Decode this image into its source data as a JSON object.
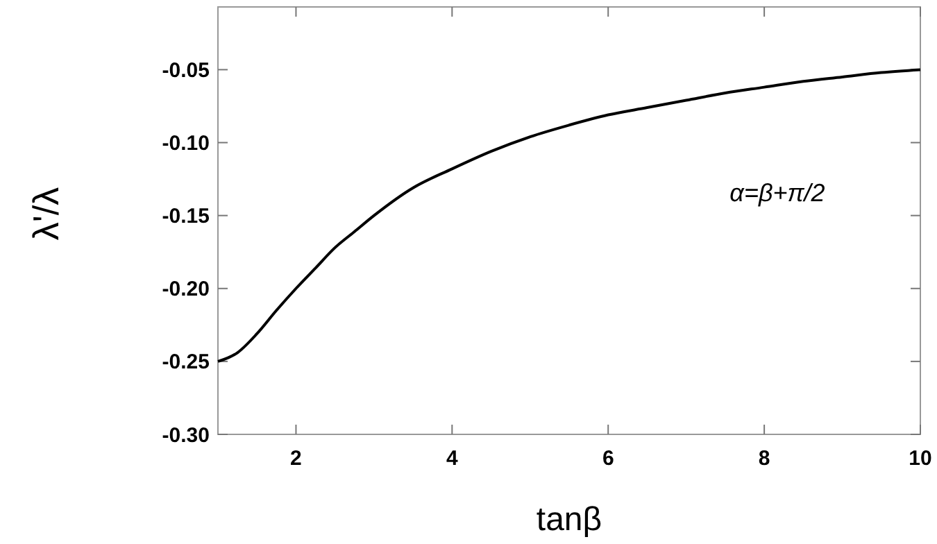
{
  "chart_data": {
    "type": "line",
    "xlabel": "tanβ",
    "ylabel": "λ'/λ",
    "x": [
      1,
      1.25,
      1.5,
      1.75,
      2,
      2.25,
      2.5,
      2.75,
      3,
      3.5,
      4,
      4.5,
      5,
      5.5,
      6,
      6.5,
      7,
      7.5,
      8,
      8.5,
      9,
      9.5,
      10
    ],
    "series": [
      {
        "color": "#000000",
        "values": [
          -0.25,
          -0.244,
          -0.231,
          -0.215,
          -0.2,
          -0.186,
          -0.172,
          -0.161,
          -0.15,
          -0.131,
          -0.118,
          -0.106,
          -0.096,
          -0.088,
          -0.081,
          -0.076,
          -0.071,
          -0.066,
          -0.062,
          -0.058,
          -0.055,
          -0.052,
          -0.05
        ]
      }
    ],
    "xlim": [
      1,
      10
    ],
    "ylim": [
      -0.3,
      -0.007
    ],
    "xticks": [
      2,
      4,
      6,
      8,
      10
    ],
    "yticks": [
      {
        "value": -0.3,
        "label": "-0.30"
      },
      {
        "value": -0.25,
        "label": "-0.25"
      },
      {
        "value": -0.2,
        "label": "-0.20"
      },
      {
        "value": -0.15,
        "label": "-0.15"
      },
      {
        "value": -0.1,
        "label": "-0.10"
      },
      {
        "value": -0.05,
        "label": "-0.05"
      }
    ],
    "annotations": [
      "α=β+π/2"
    ],
    "grid": false,
    "marker": "none",
    "line_style": "solid"
  }
}
